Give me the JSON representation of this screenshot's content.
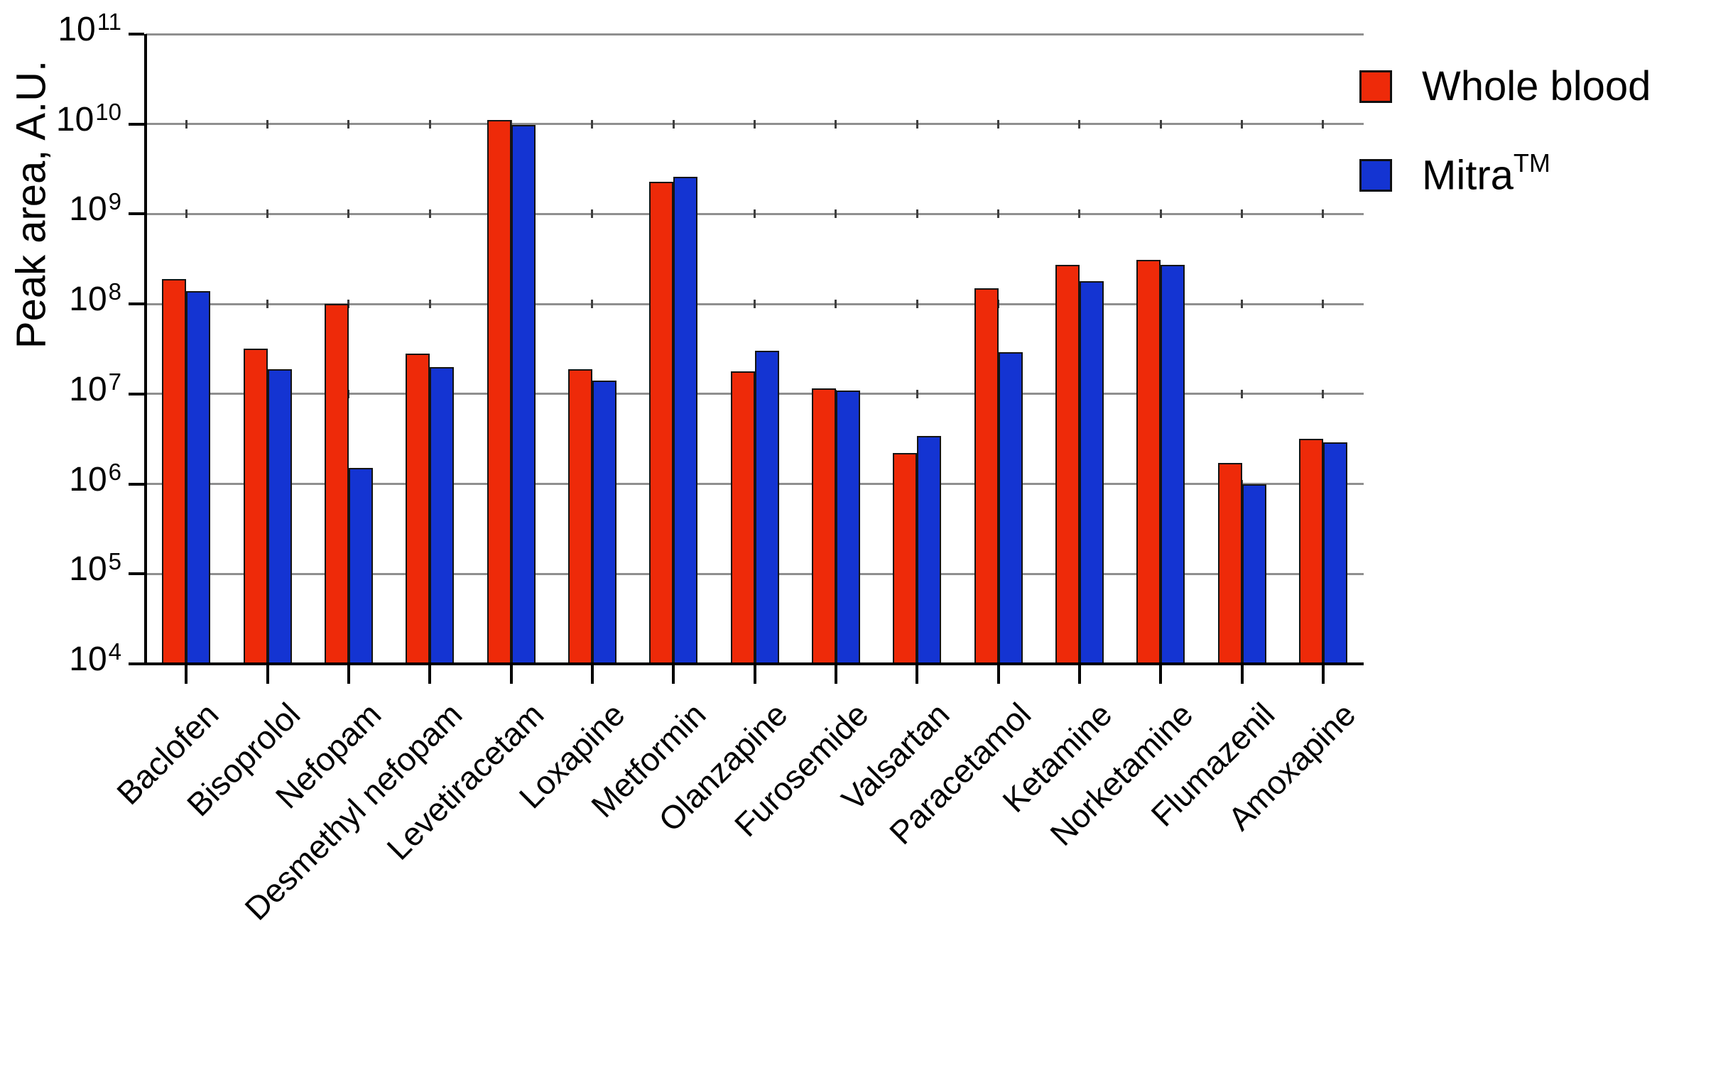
{
  "figure": {
    "background": "#ffffff"
  },
  "legend": {
    "mitra_base": "Mitra",
    "mitra_sup": "TM"
  },
  "chart_data": {
    "type": "bar",
    "title": "",
    "xlabel": "",
    "ylabel": "Peak area, A.U.",
    "y_scale": "log10",
    "ylim": [
      10000,
      100000000000
    ],
    "y_tick_base": "10",
    "y_ticks": [
      4,
      5,
      6,
      7,
      8,
      9,
      10,
      11
    ],
    "grid": true,
    "legend_position": "top-right",
    "categories": [
      "Baclofen",
      "Bisoprolol",
      "Nefopam",
      "Desmethyl nefopam",
      "Levetiracetam",
      "Loxapine",
      "Metformin",
      "Olanzapine",
      "Furosemide",
      "Valsartan",
      "Paracetamol",
      "Ketamine",
      "Norketamine",
      "Flumazenil",
      "Amoxapine"
    ],
    "series": [
      {
        "name": "Whole blood",
        "color": "#EE2A09",
        "values": [
          190000000.0,
          32000000.0,
          100000000.0,
          28000000.0,
          11000000000.0,
          19000000.0,
          2300000000.0,
          18000000.0,
          11500000.0,
          2200000.0,
          150000000.0,
          270000000.0,
          310000000.0,
          1700000.0,
          3200000.0
        ]
      },
      {
        "name": "Mitra™",
        "color": "#1434D2",
        "values": [
          140000000.0,
          19000000.0,
          1500000.0,
          20000000.0,
          9800000000.0,
          14000000.0,
          2600000000.0,
          30000000.0,
          11000000.0,
          3400000.0,
          29000000.0,
          180000000.0,
          270000000.0,
          1000000.0,
          2900000.0
        ]
      }
    ]
  }
}
